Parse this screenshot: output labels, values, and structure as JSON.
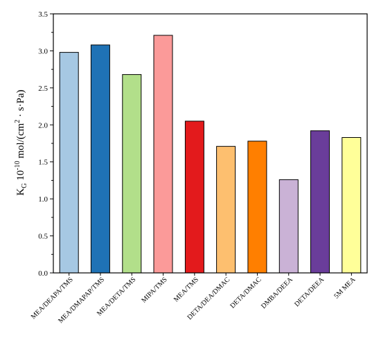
{
  "chart_data": {
    "type": "bar",
    "title": "",
    "xlabel": "",
    "ylabel": {
      "base": "K",
      "sub": "G",
      "mid": " 10",
      "sup": "-10",
      "unit": " mol/(cm",
      "unit_sup": "2",
      "unit_end": " · s·Pa)"
    },
    "ylim": [
      0,
      3.5
    ],
    "yticks": [
      "0.0",
      "0.5",
      "1.0",
      "1.5",
      "2.0",
      "2.5",
      "3.0",
      "3.5"
    ],
    "grid": false,
    "categories": [
      "MEA/DEAPA/TMS",
      "MEA/DMAPAP/TMS",
      "MEA/DETA/TMS",
      "MIPA/TMS",
      "MEA/TMS",
      "DETA/DEA/DMAC",
      "DETA/DMAC",
      "DMBA/DEEA",
      "DETA/DEEA",
      "5M MEA"
    ],
    "values": [
      2.98,
      3.08,
      2.68,
      3.21,
      2.05,
      1.71,
      1.78,
      1.26,
      1.92,
      1.83
    ],
    "colors": [
      "#a6c8e3",
      "#1f72b5",
      "#b2df8a",
      "#fb9a99",
      "#e31a1c",
      "#fdbf6f",
      "#ff7f00",
      "#cab2d6",
      "#6a3d9a",
      "#ffff99"
    ]
  }
}
